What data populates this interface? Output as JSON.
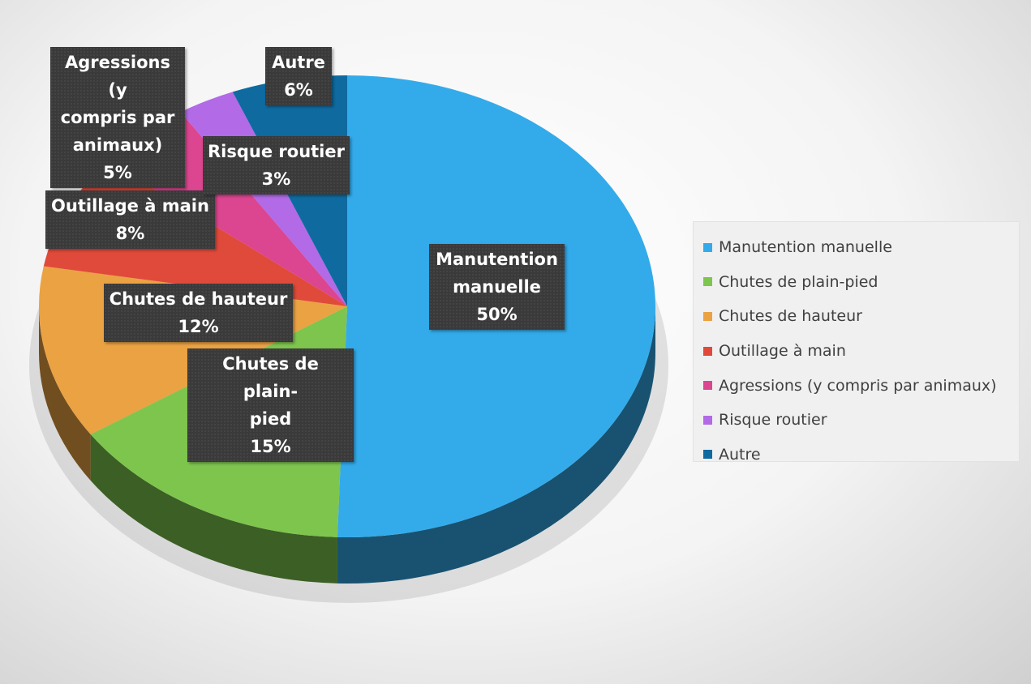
{
  "chart_data": {
    "type": "pie",
    "style": "3d",
    "categories": [
      "Manutention manuelle",
      "Chutes de plain-pied",
      "Chutes de hauteur",
      "Outillage à main",
      "Agressions (y compris par animaux)",
      "Risque routier",
      "Autre"
    ],
    "values": [
      50,
      15,
      12,
      8,
      5,
      3,
      6
    ],
    "value_labels": [
      "50%",
      "15%",
      "12%",
      "8%",
      "5%",
      "3%",
      "6%"
    ],
    "data_labels": [
      [
        "Manutention",
        "manuelle"
      ],
      [
        "Chutes de plain-",
        "pied"
      ],
      [
        "Chutes de hauteur"
      ],
      [
        "Outillage à main"
      ],
      [
        "Agressions (y",
        "compris par",
        "animaux)"
      ],
      [
        "Risque routier"
      ],
      [
        "Autre"
      ]
    ],
    "colors": [
      "#33abea",
      "#7ec54e",
      "#eba243",
      "#e04a3a",
      "#dc4590",
      "#b26ae6",
      "#0f6aa0"
    ],
    "legend_position": "right"
  }
}
